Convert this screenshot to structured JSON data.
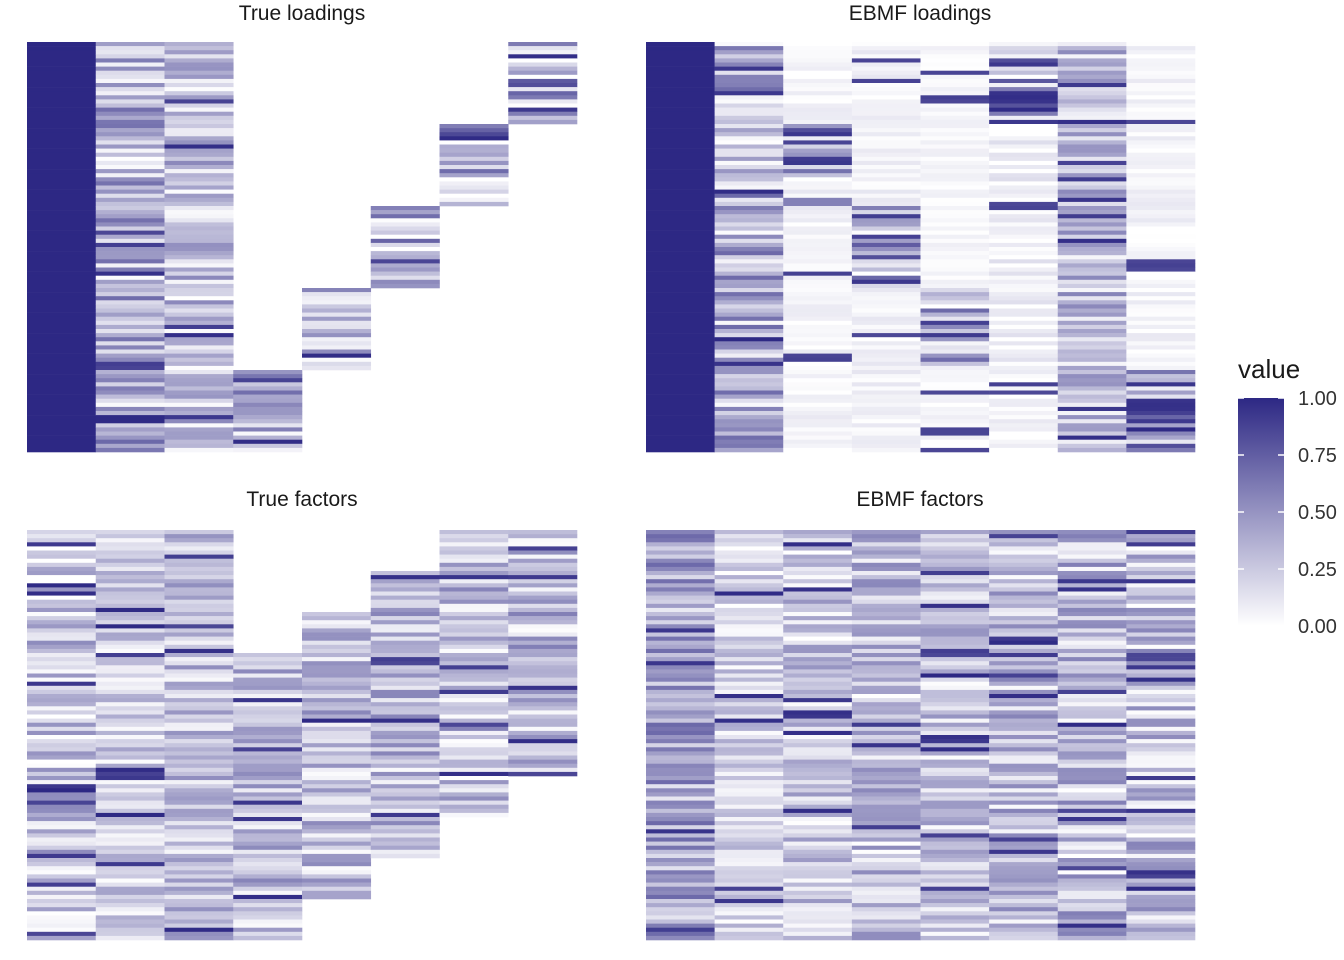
{
  "chart_data": {
    "type": "heatmap",
    "panels": [
      {
        "title": "True loadings",
        "n_factors": 8,
        "n_rows": 100,
        "blocks": [
          [
            0,
            100
          ],
          [
            0,
            100
          ],
          [
            0,
            100
          ],
          [
            80,
            100
          ],
          [
            60,
            80
          ],
          [
            40,
            60
          ],
          [
            20,
            40
          ],
          [
            0,
            20
          ]
        ],
        "col_mean": [
          1.0,
          0.35,
          0.28,
          0.35,
          0.4,
          0.4,
          0.4,
          0.4
        ],
        "col_spread": [
          0.0,
          0.35,
          0.28,
          0.4,
          0.45,
          0.45,
          0.45,
          0.45
        ]
      },
      {
        "title": "EBMF loadings",
        "n_factors": 8,
        "n_rows": 100,
        "blocks": [
          [
            0,
            100
          ],
          [
            0,
            100
          ],
          [
            0,
            100
          ],
          [
            0,
            100
          ],
          [
            0,
            100
          ],
          [
            0,
            100
          ],
          [
            0,
            100
          ],
          [
            0,
            100
          ]
        ],
        "col_mean": [
          1.0,
          0.35,
          0.05,
          0.06,
          0.04,
          0.06,
          0.3,
          0.05
        ],
        "col_spread": [
          0.0,
          0.35,
          0.06,
          0.06,
          0.04,
          0.1,
          0.28,
          0.06
        ],
        "strong_blocks": [
          [
            2,
            20,
            40
          ],
          [
            3,
            40,
            60
          ],
          [
            4,
            60,
            80
          ],
          [
            5,
            0,
            20
          ],
          [
            7,
            80,
            100
          ]
        ]
      },
      {
        "title": "True factors",
        "n_factors": 8,
        "n_rows": 100,
        "blocks": [
          [
            0,
            100
          ],
          [
            0,
            100
          ],
          [
            0,
            100
          ],
          [
            30,
            100
          ],
          [
            20,
            90
          ],
          [
            10,
            80
          ],
          [
            0,
            70
          ],
          [
            0,
            60
          ]
        ],
        "col_mean": [
          0.25,
          0.22,
          0.28,
          0.3,
          0.28,
          0.3,
          0.3,
          0.3
        ],
        "col_spread": [
          0.3,
          0.22,
          0.25,
          0.28,
          0.28,
          0.28,
          0.3,
          0.3
        ]
      },
      {
        "title": "EBMF factors",
        "n_factors": 8,
        "n_rows": 100,
        "blocks": [
          [
            0,
            100
          ],
          [
            0,
            100
          ],
          [
            0,
            100
          ],
          [
            0,
            100
          ],
          [
            0,
            100
          ],
          [
            0,
            100
          ],
          [
            0,
            100
          ],
          [
            0,
            100
          ]
        ],
        "col_mean": [
          0.4,
          0.2,
          0.25,
          0.28,
          0.25,
          0.3,
          0.3,
          0.28
        ],
        "col_spread": [
          0.3,
          0.2,
          0.25,
          0.28,
          0.25,
          0.28,
          0.3,
          0.3
        ]
      }
    ],
    "legend": {
      "title": "value",
      "placement": "right",
      "breaks": [
        1.0,
        0.75,
        0.5,
        0.25,
        0.0
      ],
      "labels": [
        "1.00",
        "0.75",
        "0.50",
        "0.25",
        "0.00"
      ],
      "low_color": "#FFFFFF",
      "high_color": "#2D2884"
    }
  }
}
